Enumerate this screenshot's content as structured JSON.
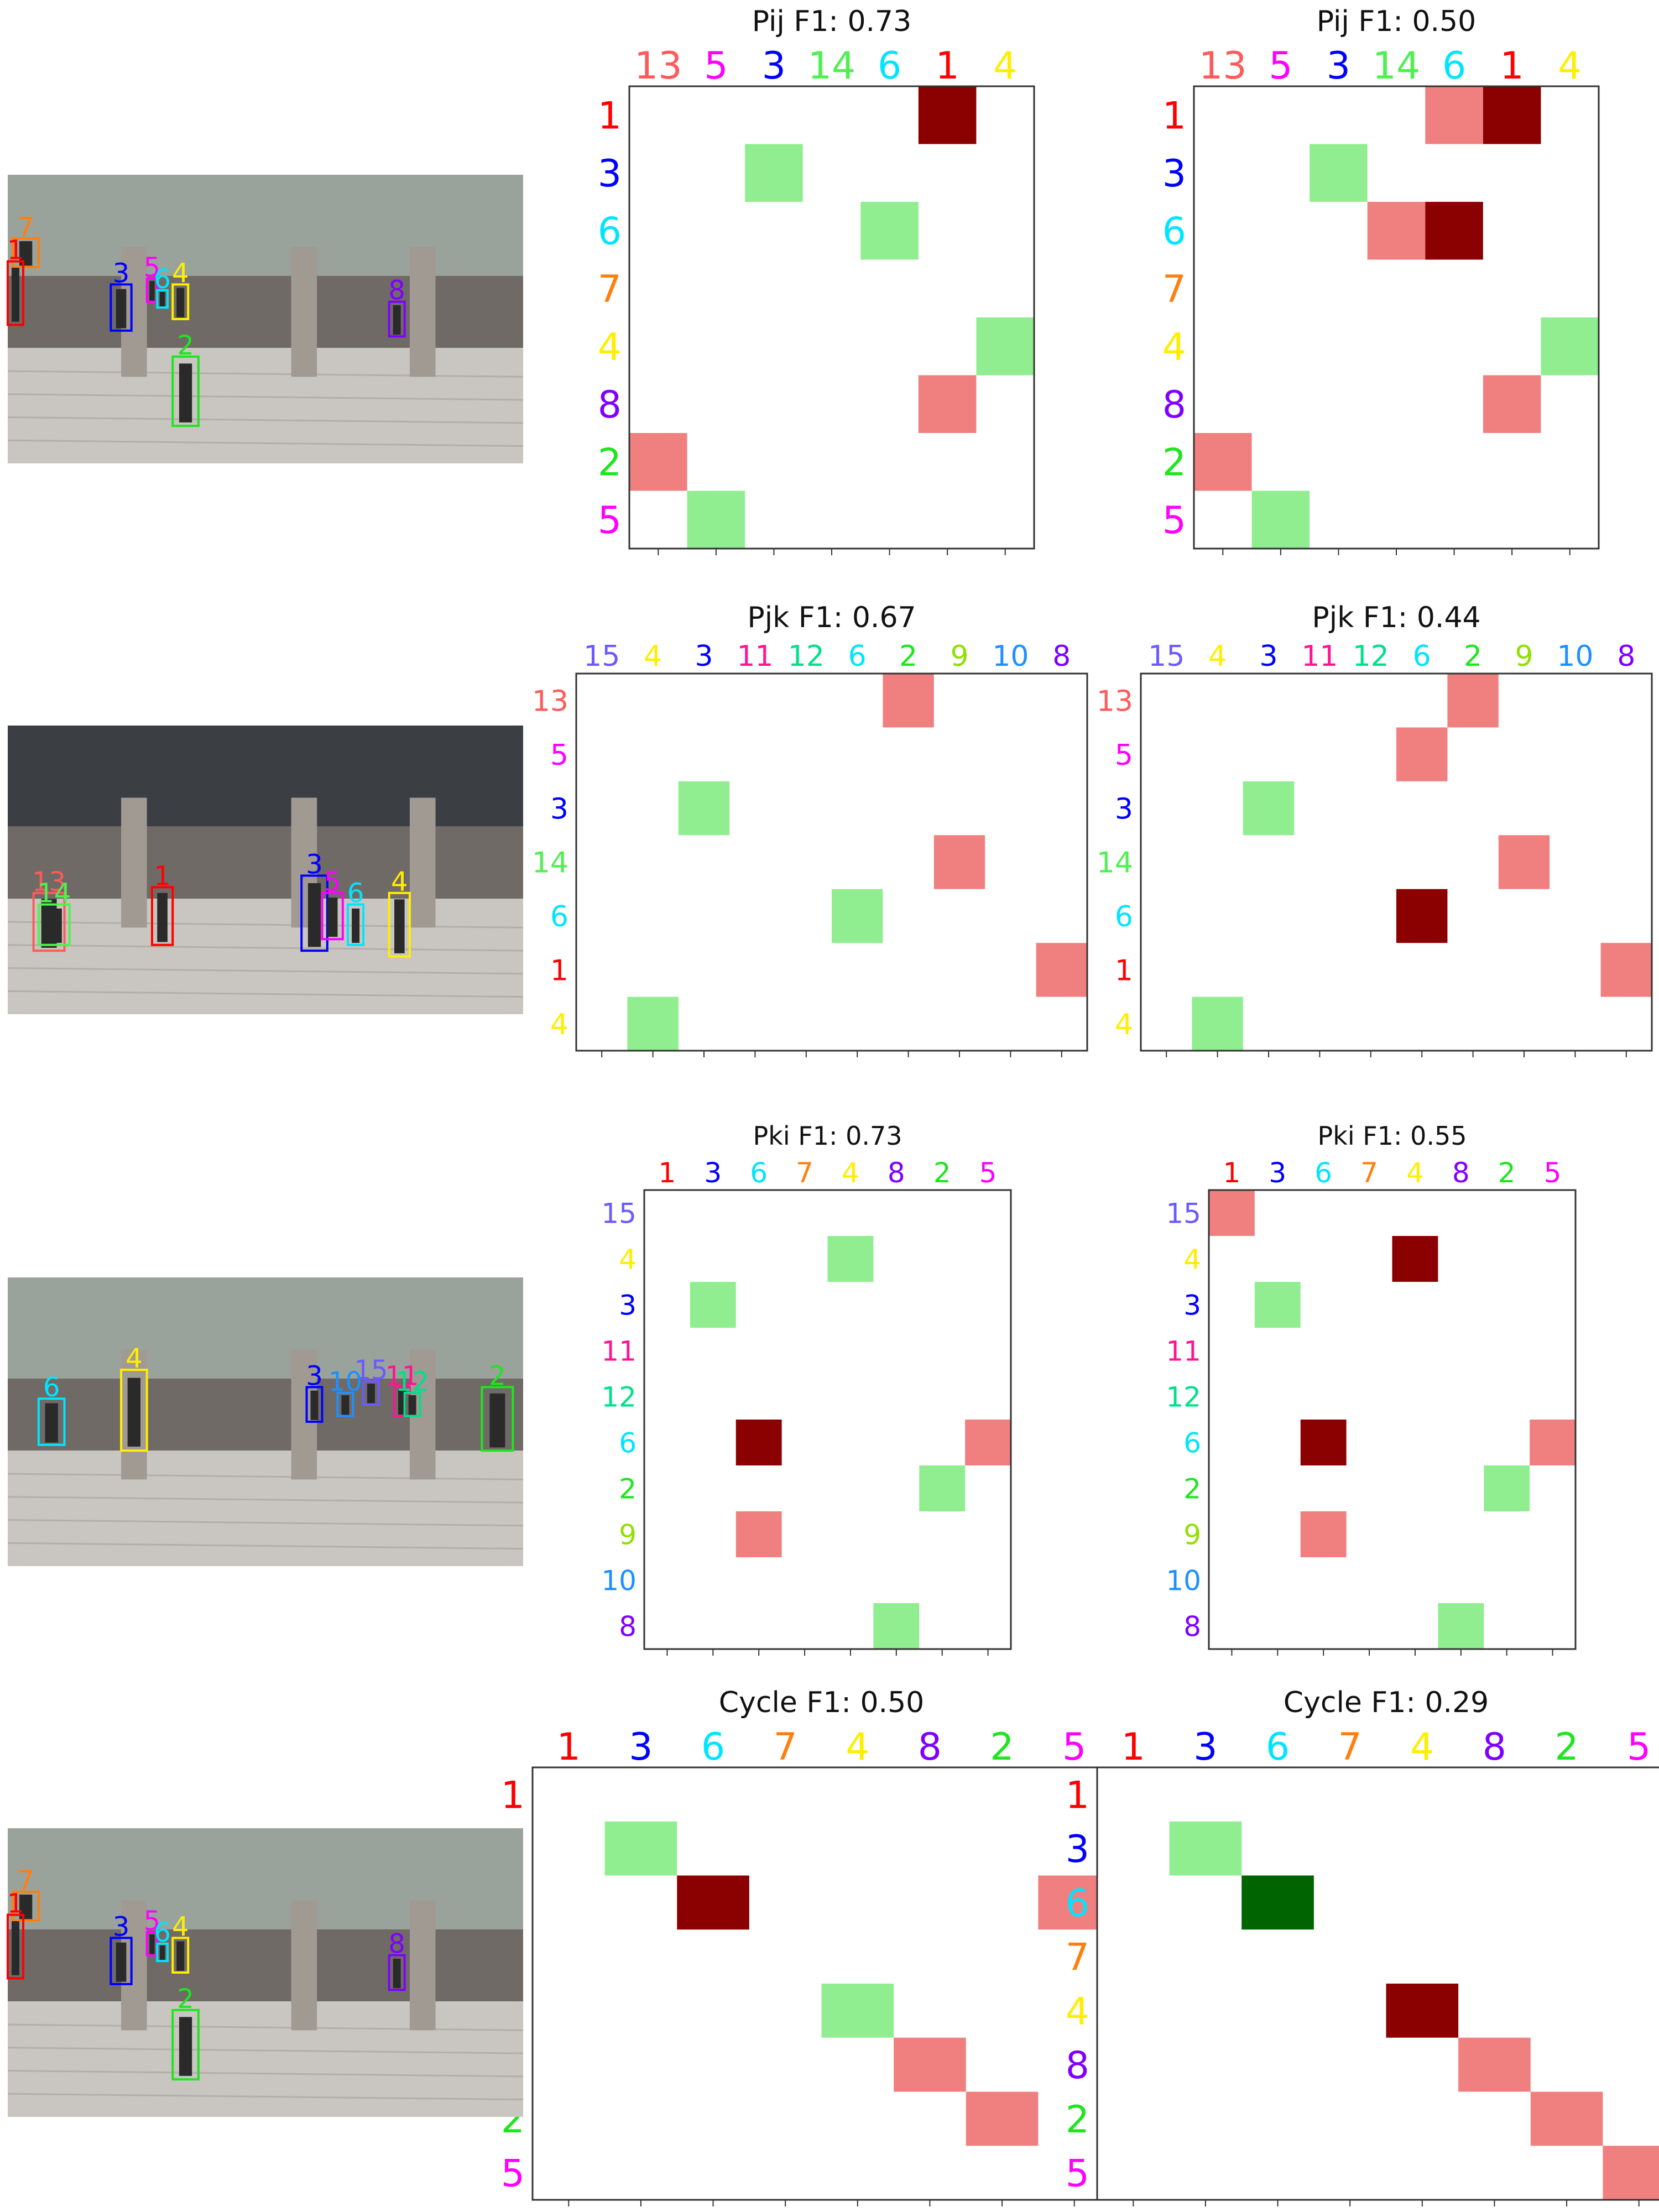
{
  "colors": {
    "correct": "#90ee90",
    "wrong": "#f08080",
    "dark_red": "#8b0000",
    "dark_green": "#006400",
    "frame": "#333333"
  },
  "id_colors": {
    "1": "#ff0000",
    "2": "#1ee61e",
    "3": "#0000ff",
    "4": "#ffee00",
    "5": "#ff00ff",
    "6": "#00e5ff",
    "7": "#ff7f0e",
    "8": "#8000ff",
    "9": "#90e000",
    "10": "#1e90ff",
    "11": "#ff1493",
    "12": "#00e08a",
    "13": "#ff5a5a",
    "14": "#50f050",
    "15": "#6b5bff"
  },
  "photos": [
    {
      "name": "scene-photo-1",
      "description": "mall walkway scene with 8 people",
      "boxes": [
        "7",
        "1",
        "3",
        "5",
        "6",
        "4",
        "8",
        "2"
      ]
    },
    {
      "name": "scene-photo-2",
      "description": "mall entrance scene with people under canopy",
      "boxes": [
        "13",
        "14",
        "1",
        "3",
        "5",
        "6",
        "4"
      ]
    },
    {
      "name": "scene-photo-3",
      "description": "mall plaza scene with people near storefronts",
      "boxes": [
        "6",
        "4",
        "3",
        "15",
        "11",
        "10",
        "12",
        "2"
      ]
    },
    {
      "name": "scene-photo-4",
      "description": "mall walkway scene with 8 people",
      "boxes": [
        "7",
        "1",
        "3",
        "5",
        "6",
        "4",
        "8",
        "2"
      ]
    }
  ],
  "chart_data": [
    {
      "type": "heatmap",
      "title": "Pij F1: 0.73",
      "x_labels": [
        "13",
        "5",
        "3",
        "14",
        "6",
        "1",
        "4"
      ],
      "y_labels": [
        "1",
        "3",
        "6",
        "7",
        "4",
        "8",
        "2",
        "5"
      ],
      "cells": [
        {
          "row": 0,
          "col": 5,
          "kind": "dark_red"
        },
        {
          "row": 1,
          "col": 2,
          "kind": "correct"
        },
        {
          "row": 2,
          "col": 4,
          "kind": "correct"
        },
        {
          "row": 4,
          "col": 6,
          "kind": "correct"
        },
        {
          "row": 5,
          "col": 5,
          "kind": "wrong"
        },
        {
          "row": 6,
          "col": 0,
          "kind": "wrong"
        },
        {
          "row": 7,
          "col": 1,
          "kind": "correct"
        }
      ]
    },
    {
      "type": "heatmap",
      "title": "Pij F1: 0.50",
      "x_labels": [
        "13",
        "5",
        "3",
        "14",
        "6",
        "1",
        "4"
      ],
      "y_labels": [
        "1",
        "3",
        "6",
        "7",
        "4",
        "8",
        "2",
        "5"
      ],
      "cells": [
        {
          "row": 0,
          "col": 4,
          "kind": "wrong"
        },
        {
          "row": 0,
          "col": 5,
          "kind": "dark_red"
        },
        {
          "row": 1,
          "col": 2,
          "kind": "correct"
        },
        {
          "row": 2,
          "col": 3,
          "kind": "wrong"
        },
        {
          "row": 2,
          "col": 4,
          "kind": "dark_red"
        },
        {
          "row": 4,
          "col": 6,
          "kind": "correct"
        },
        {
          "row": 5,
          "col": 5,
          "kind": "wrong"
        },
        {
          "row": 6,
          "col": 0,
          "kind": "wrong"
        },
        {
          "row": 7,
          "col": 1,
          "kind": "correct"
        }
      ]
    },
    {
      "type": "heatmap",
      "title": "Pjk F1: 0.67",
      "x_labels": [
        "15",
        "4",
        "3",
        "11",
        "12",
        "6",
        "2",
        "9",
        "10",
        "8"
      ],
      "y_labels": [
        "13",
        "5",
        "3",
        "14",
        "6",
        "1",
        "4"
      ],
      "cells": [
        {
          "row": 0,
          "col": 6,
          "kind": "wrong"
        },
        {
          "row": 2,
          "col": 2,
          "kind": "correct"
        },
        {
          "row": 3,
          "col": 7,
          "kind": "wrong"
        },
        {
          "row": 4,
          "col": 5,
          "kind": "correct"
        },
        {
          "row": 5,
          "col": 9,
          "kind": "wrong"
        },
        {
          "row": 6,
          "col": 1,
          "kind": "correct"
        }
      ]
    },
    {
      "type": "heatmap",
      "title": "Pjk F1: 0.44",
      "x_labels": [
        "15",
        "4",
        "3",
        "11",
        "12",
        "6",
        "2",
        "9",
        "10",
        "8"
      ],
      "y_labels": [
        "13",
        "5",
        "3",
        "14",
        "6",
        "1",
        "4"
      ],
      "cells": [
        {
          "row": 0,
          "col": 6,
          "kind": "wrong"
        },
        {
          "row": 1,
          "col": 5,
          "kind": "wrong"
        },
        {
          "row": 2,
          "col": 2,
          "kind": "correct"
        },
        {
          "row": 3,
          "col": 7,
          "kind": "wrong"
        },
        {
          "row": 4,
          "col": 5,
          "kind": "dark_red"
        },
        {
          "row": 5,
          "col": 9,
          "kind": "wrong"
        },
        {
          "row": 6,
          "col": 1,
          "kind": "correct"
        }
      ]
    },
    {
      "type": "heatmap",
      "title": "Pki F1: 0.73",
      "x_labels": [
        "1",
        "3",
        "6",
        "7",
        "4",
        "8",
        "2",
        "5"
      ],
      "y_labels": [
        "15",
        "4",
        "3",
        "11",
        "12",
        "6",
        "2",
        "9",
        "10",
        "8"
      ],
      "cells": [
        {
          "row": 1,
          "col": 4,
          "kind": "correct"
        },
        {
          "row": 2,
          "col": 1,
          "kind": "correct"
        },
        {
          "row": 5,
          "col": 2,
          "kind": "dark_red"
        },
        {
          "row": 5,
          "col": 7,
          "kind": "wrong"
        },
        {
          "row": 6,
          "col": 6,
          "kind": "correct"
        },
        {
          "row": 7,
          "col": 2,
          "kind": "wrong"
        },
        {
          "row": 9,
          "col": 5,
          "kind": "correct"
        }
      ]
    },
    {
      "type": "heatmap",
      "title": "Pki F1: 0.55",
      "x_labels": [
        "1",
        "3",
        "6",
        "7",
        "4",
        "8",
        "2",
        "5"
      ],
      "y_labels": [
        "15",
        "4",
        "3",
        "11",
        "12",
        "6",
        "2",
        "9",
        "10",
        "8"
      ],
      "cells": [
        {
          "row": 0,
          "col": 0,
          "kind": "wrong"
        },
        {
          "row": 1,
          "col": 4,
          "kind": "dark_red"
        },
        {
          "row": 2,
          "col": 1,
          "kind": "correct"
        },
        {
          "row": 5,
          "col": 2,
          "kind": "dark_red"
        },
        {
          "row": 5,
          "col": 7,
          "kind": "wrong"
        },
        {
          "row": 6,
          "col": 6,
          "kind": "correct"
        },
        {
          "row": 7,
          "col": 2,
          "kind": "wrong"
        },
        {
          "row": 9,
          "col": 5,
          "kind": "correct"
        }
      ]
    },
    {
      "type": "heatmap",
      "title": "Cycle F1: 0.50",
      "x_labels": [
        "1",
        "3",
        "6",
        "7",
        "4",
        "8",
        "2",
        "5"
      ],
      "y_labels": [
        "1",
        "3",
        "6",
        "7",
        "4",
        "8",
        "2",
        "5"
      ],
      "cells": [
        {
          "row": 1,
          "col": 1,
          "kind": "correct"
        },
        {
          "row": 2,
          "col": 2,
          "kind": "dark_red"
        },
        {
          "row": 2,
          "col": 7,
          "kind": "wrong"
        },
        {
          "row": 4,
          "col": 4,
          "kind": "correct"
        },
        {
          "row": 5,
          "col": 5,
          "kind": "wrong"
        },
        {
          "row": 6,
          "col": 6,
          "kind": "wrong"
        }
      ]
    },
    {
      "type": "heatmap",
      "title": "Cycle F1: 0.29",
      "x_labels": [
        "1",
        "3",
        "6",
        "7",
        "4",
        "8",
        "2",
        "5"
      ],
      "y_labels": [
        "1",
        "3",
        "6",
        "7",
        "4",
        "8",
        "2",
        "5"
      ],
      "cells": [
        {
          "row": 1,
          "col": 1,
          "kind": "correct"
        },
        {
          "row": 2,
          "col": 2,
          "kind": "dark_green"
        },
        {
          "row": 4,
          "col": 4,
          "kind": "dark_red"
        },
        {
          "row": 5,
          "col": 5,
          "kind": "wrong"
        },
        {
          "row": 6,
          "col": 6,
          "kind": "wrong"
        },
        {
          "row": 7,
          "col": 7,
          "kind": "wrong"
        }
      ]
    }
  ]
}
